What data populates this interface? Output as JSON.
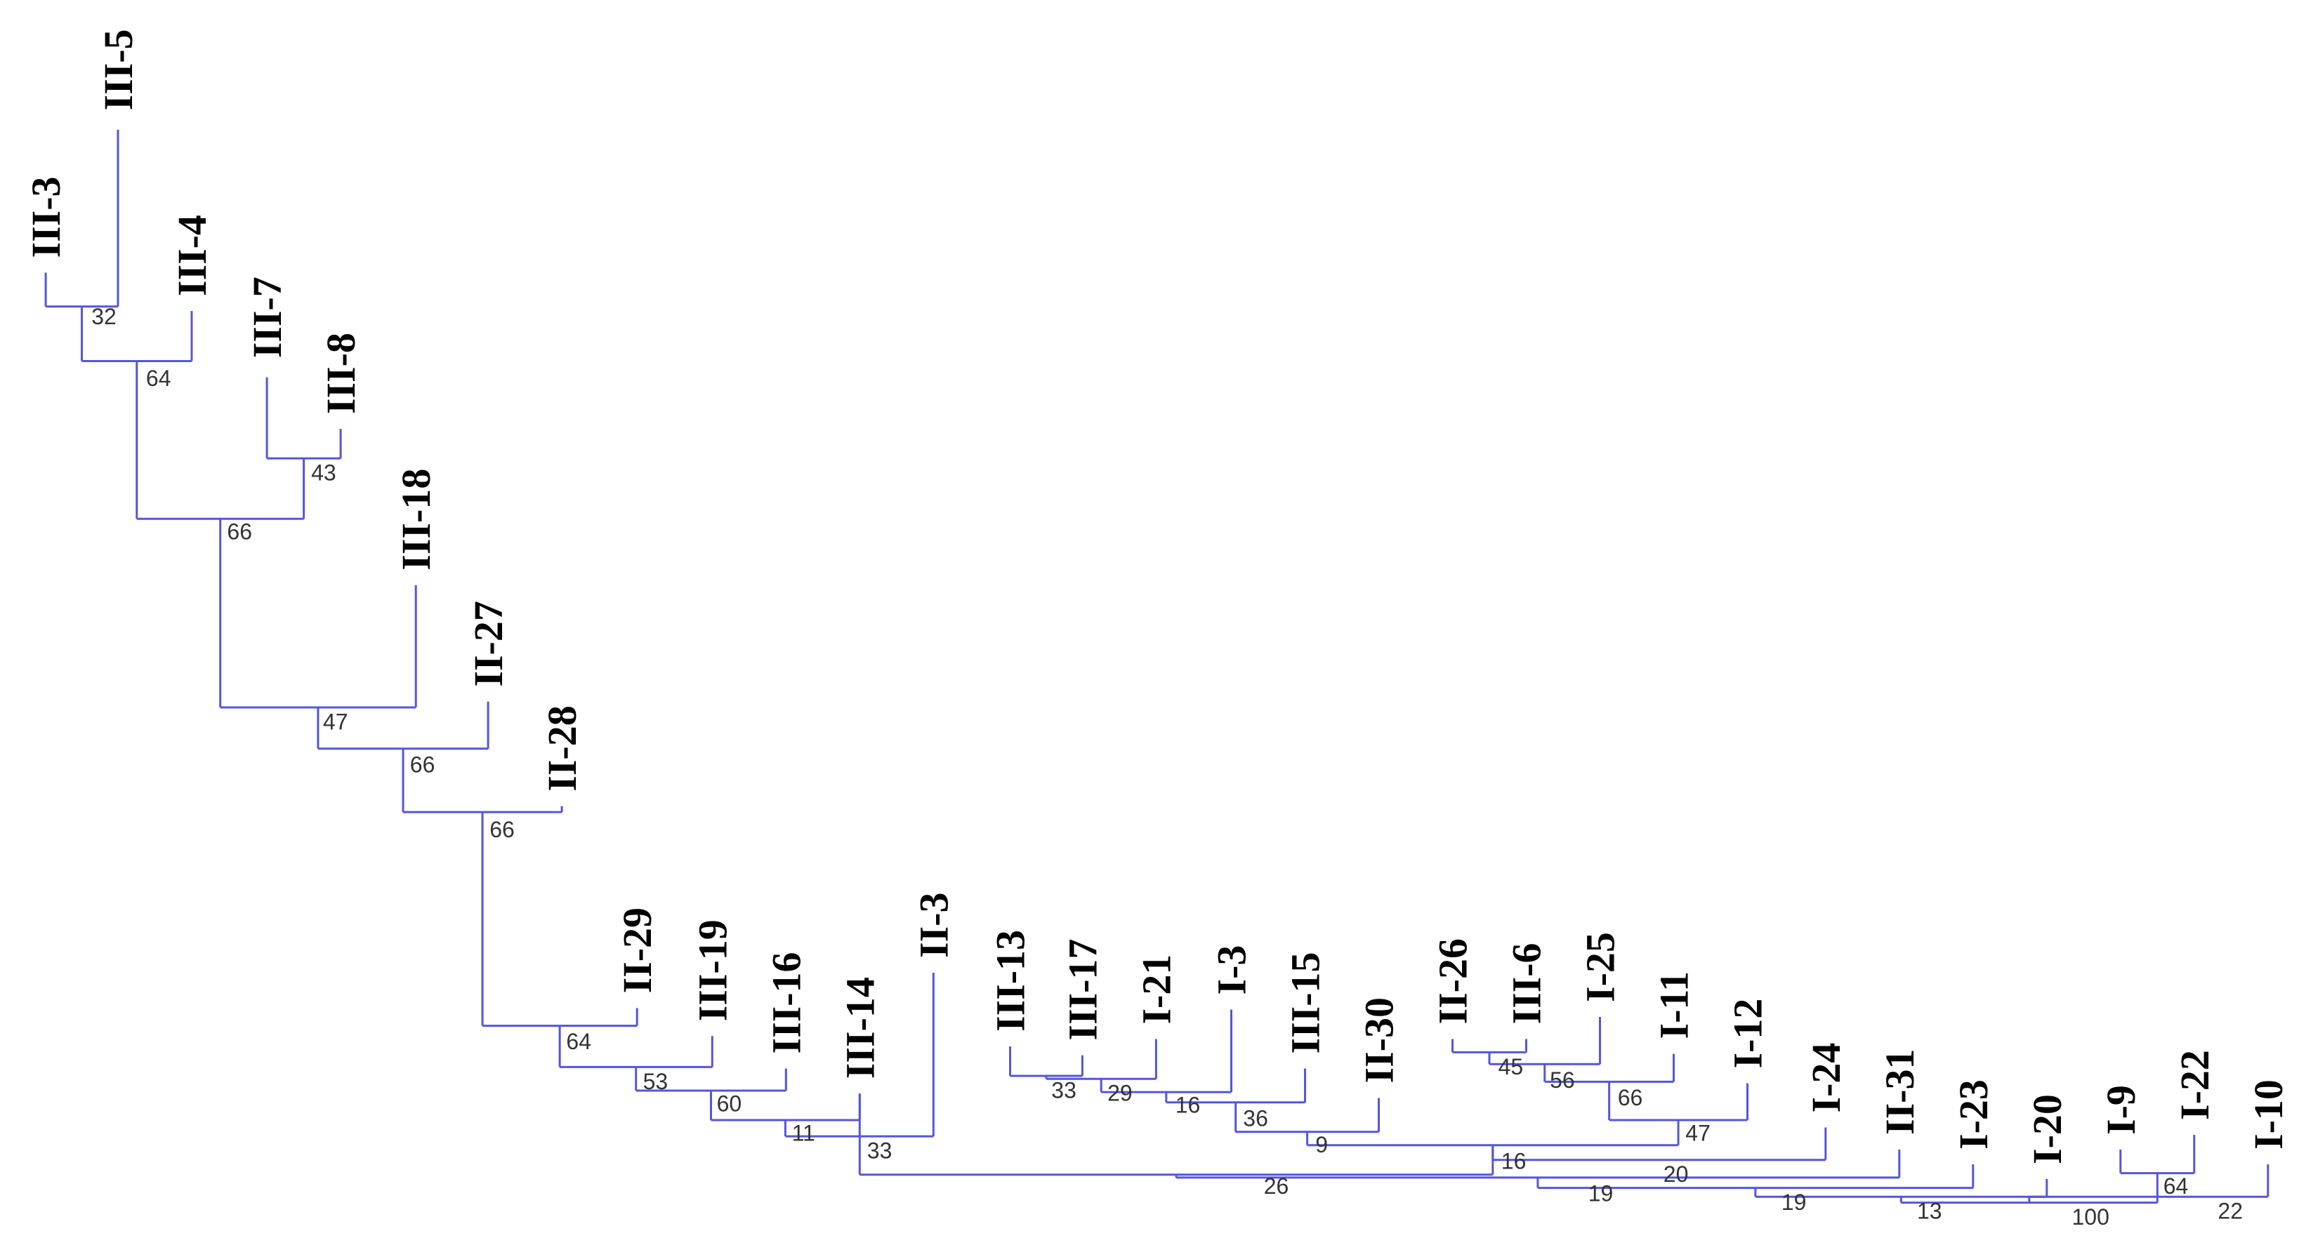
{
  "diagram": {
    "type": "dendrogram",
    "colors": {
      "branch": "#5555dd",
      "leaf_text": "#000000",
      "support_text": "#333333"
    },
    "leaves": [
      "III-3",
      "III-5",
      "III-4",
      "III-7",
      "III-8",
      "III-18",
      "II-27",
      "II-28",
      "II-29",
      "III-19",
      "III-16",
      "III-14",
      "II-3",
      "III-13",
      "III-17",
      "I-21",
      "I-3",
      "III-15",
      "II-30",
      "II-26",
      "III-6",
      "I-25",
      "I-11",
      "I-12",
      "I-24",
      "II-31",
      "I-23",
      "I-20",
      "I-9",
      "I-22",
      "I-10"
    ],
    "support_values": [
      "32",
      "64",
      "43",
      "66",
      "47",
      "66",
      "66",
      "64",
      "53",
      "60",
      "11",
      "33",
      "33",
      "29",
      "16",
      "36",
      "9",
      "45",
      "56",
      "66",
      "47",
      "16",
      "26",
      "20",
      "19",
      "19",
      "13",
      "64",
      "100",
      "22"
    ]
  }
}
